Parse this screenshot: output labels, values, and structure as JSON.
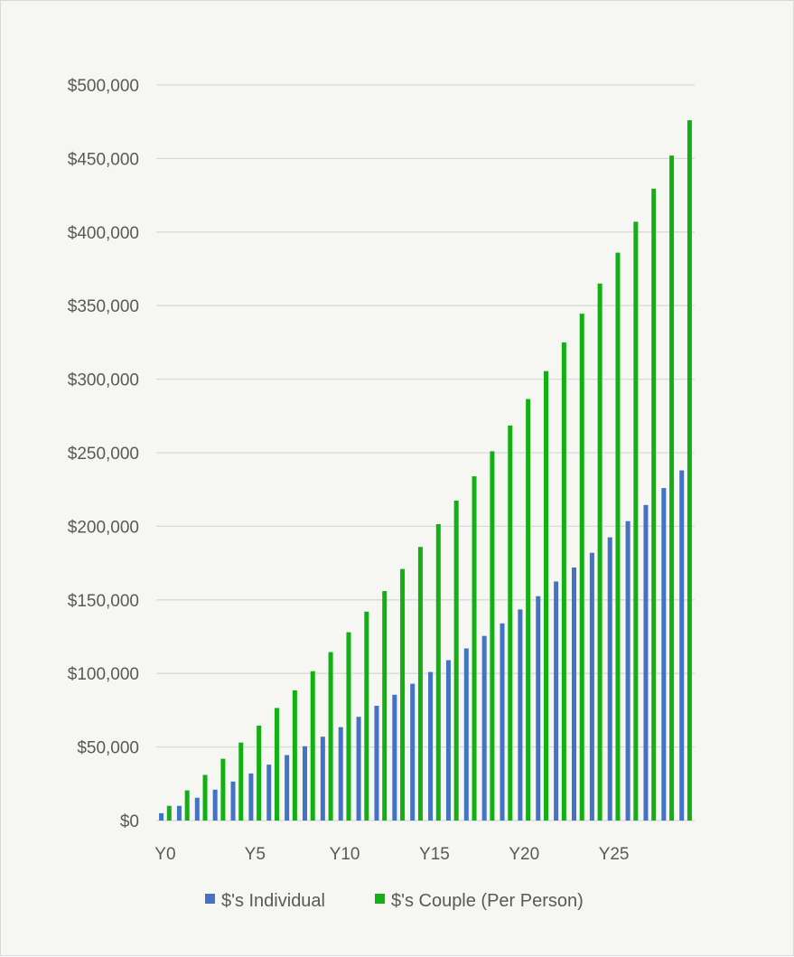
{
  "chart_data": {
    "type": "bar",
    "title": "",
    "xlabel": "",
    "ylabel": "",
    "ylim": [
      0,
      500000
    ],
    "y_ticks": [
      {
        "value": 0,
        "label": "$0"
      },
      {
        "value": 50000,
        "label": "$50,000"
      },
      {
        "value": 100000,
        "label": "$100,000"
      },
      {
        "value": 150000,
        "label": "$150,000"
      },
      {
        "value": 200000,
        "label": "$200,000"
      },
      {
        "value": 250000,
        "label": "$250,000"
      },
      {
        "value": 300000,
        "label": "$300,000"
      },
      {
        "value": 350000,
        "label": "$350,000"
      },
      {
        "value": 400000,
        "label": "$400,000"
      },
      {
        "value": 450000,
        "label": "$450,000"
      },
      {
        "value": 500000,
        "label": "$500,000"
      }
    ],
    "categories": [
      "Y0",
      "Y1",
      "Y2",
      "Y3",
      "Y4",
      "Y5",
      "Y6",
      "Y7",
      "Y8",
      "Y9",
      "Y10",
      "Y11",
      "Y12",
      "Y13",
      "Y14",
      "Y15",
      "Y16",
      "Y17",
      "Y18",
      "Y19",
      "Y20",
      "Y21",
      "Y22",
      "Y23",
      "Y24",
      "Y25",
      "Y26",
      "Y27",
      "Y28",
      "Y29"
    ],
    "x_tick_labels": [
      {
        "index": 0,
        "label": "Y0"
      },
      {
        "index": 5,
        "label": "Y5"
      },
      {
        "index": 10,
        "label": "Y10"
      },
      {
        "index": 15,
        "label": "Y15"
      },
      {
        "index": 20,
        "label": "Y20"
      },
      {
        "index": 25,
        "label": "Y25"
      }
    ],
    "grid": true,
    "legend_position": "bottom",
    "series": [
      {
        "name": "$'s Individual",
        "color": "#4472c4",
        "values": [
          5000,
          10000,
          15500,
          21000,
          26500,
          32000,
          38000,
          44500,
          50500,
          57000,
          63500,
          70500,
          78000,
          85500,
          93000,
          101000,
          109000,
          117000,
          125500,
          134000,
          143500,
          152500,
          162500,
          172000,
          182000,
          192500,
          203500,
          214500,
          226000,
          238000
        ]
      },
      {
        "name": "$'s Couple (Per Person)",
        "color": "#12b012",
        "values": [
          10000,
          20500,
          31000,
          42000,
          53000,
          64500,
          76500,
          88500,
          101500,
          114500,
          128000,
          142000,
          156000,
          171000,
          186000,
          201500,
          217500,
          234000,
          251000,
          268500,
          286500,
          305500,
          325000,
          344500,
          365000,
          386000,
          407000,
          429500,
          452000,
          476000
        ]
      }
    ]
  }
}
